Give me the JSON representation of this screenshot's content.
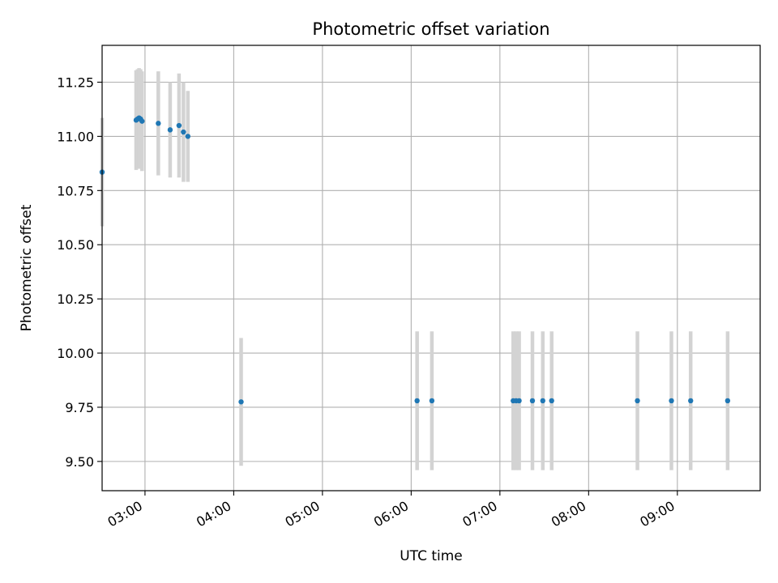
{
  "chart_data": {
    "type": "scatter",
    "title": "Photometric offset variation",
    "xlabel": "UTC time",
    "ylabel": "Photometric offset",
    "x_unit": "UTC time (HH:MM)",
    "xlim": [
      "02:31",
      "09:56"
    ],
    "ylim": [
      9.365,
      11.42
    ],
    "xticks": [
      "03:00",
      "04:00",
      "05:00",
      "06:00",
      "07:00",
      "08:00",
      "09:00"
    ],
    "yticks": [
      9.5,
      9.75,
      10.0,
      10.25,
      10.5,
      10.75,
      11.0,
      11.25
    ],
    "ytick_labels": [
      "9.50",
      "9.75",
      "10.00",
      "10.25",
      "10.50",
      "10.75",
      "11.00",
      "11.25"
    ],
    "grid": true,
    "colors": {
      "point": "#1f77b4",
      "errorbar": "#d3d3d3",
      "grid": "#b0b0b0",
      "axes": "#000000"
    },
    "points": [
      {
        "x": "02:31",
        "y": 10.835,
        "err": 0.25
      },
      {
        "x": "02:54",
        "y": 11.075,
        "err": 0.23
      },
      {
        "x": "02:55",
        "y": 11.08,
        "err": 0.23
      },
      {
        "x": "02:56",
        "y": 11.085,
        "err": 0.23
      },
      {
        "x": "02:57",
        "y": 11.08,
        "err": 0.23
      },
      {
        "x": "02:58",
        "y": 11.07,
        "err": 0.23
      },
      {
        "x": "03:09",
        "y": 11.06,
        "err": 0.24
      },
      {
        "x": "03:17",
        "y": 11.03,
        "err": 0.22
      },
      {
        "x": "03:23",
        "y": 11.05,
        "err": 0.24
      },
      {
        "x": "03:26",
        "y": 11.02,
        "err": 0.23
      },
      {
        "x": "03:29",
        "y": 11.0,
        "err": 0.21
      },
      {
        "x": "04:05",
        "y": 9.775,
        "err": 0.295
      },
      {
        "x": "06:04",
        "y": 9.78,
        "err": 0.32
      },
      {
        "x": "06:14",
        "y": 9.78,
        "err": 0.32
      },
      {
        "x": "07:09",
        "y": 9.78,
        "err": 0.32
      },
      {
        "x": "07:11",
        "y": 9.78,
        "err": 0.32
      },
      {
        "x": "07:13",
        "y": 9.78,
        "err": 0.32
      },
      {
        "x": "07:22",
        "y": 9.78,
        "err": 0.32
      },
      {
        "x": "07:29",
        "y": 9.78,
        "err": 0.32
      },
      {
        "x": "07:35",
        "y": 9.78,
        "err": 0.32
      },
      {
        "x": "08:33",
        "y": 9.78,
        "err": 0.32
      },
      {
        "x": "08:56",
        "y": 9.78,
        "err": 0.32
      },
      {
        "x": "09:09",
        "y": 9.78,
        "err": 0.32
      },
      {
        "x": "09:34",
        "y": 9.78,
        "err": 0.32
      }
    ]
  }
}
